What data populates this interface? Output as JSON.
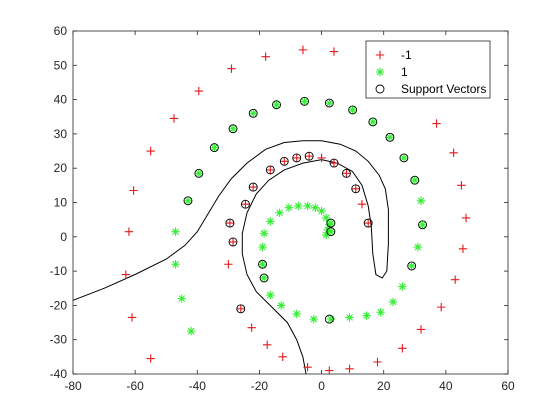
{
  "chart_data": {
    "type": "scatter",
    "title": "",
    "xlabel": "",
    "ylabel": "",
    "xlim": [
      -80,
      60
    ],
    "ylim": [
      -40,
      60
    ],
    "xticks": [
      -80,
      -60,
      -40,
      -20,
      0,
      20,
      40,
      60
    ],
    "yticks": [
      -40,
      -30,
      -20,
      -10,
      0,
      10,
      20,
      30,
      40,
      50,
      60
    ],
    "grid": false,
    "legend_position": "top-right",
    "series": [
      {
        "name": "-1",
        "marker": "plus",
        "color": "#e41a1c",
        "points": [
          [
            -62,
            1.5
          ],
          [
            -63,
            -11
          ],
          [
            -61,
            -23.5
          ],
          [
            -55,
            -35.5
          ],
          [
            -60.5,
            13.5
          ],
          [
            -55,
            25
          ],
          [
            -47.5,
            34.5
          ],
          [
            -39.5,
            42.5
          ],
          [
            -29,
            49
          ],
          [
            -18,
            52.5
          ],
          [
            -6,
            54.5
          ],
          [
            4,
            54
          ],
          [
            -30,
            -8
          ],
          [
            -29.5,
            4
          ],
          [
            -24.5,
            9.5
          ],
          [
            -22,
            14.5
          ],
          [
            -16.5,
            19.5
          ],
          [
            -12,
            22
          ],
          [
            -8,
            23
          ],
          [
            -4,
            23.5
          ],
          [
            0,
            23
          ],
          [
            4,
            21.5
          ],
          [
            8,
            18.5
          ],
          [
            11,
            14
          ],
          [
            13,
            9.5
          ],
          [
            15,
            4
          ],
          [
            -28.5,
            -1.5
          ],
          [
            -26,
            -21
          ],
          [
            -22.5,
            -26.5
          ],
          [
            -17.5,
            -31.5
          ],
          [
            -12.5,
            -35
          ],
          [
            -4.5,
            -38
          ],
          [
            2.5,
            -39
          ],
          [
            9,
            -38.5
          ],
          [
            18,
            -36.5
          ],
          [
            26,
            -32.5
          ],
          [
            32,
            -27
          ],
          [
            38.5,
            -20.5
          ],
          [
            43,
            -12.5
          ],
          [
            45.5,
            -3.5
          ],
          [
            46.5,
            5.5
          ],
          [
            45,
            15
          ],
          [
            42.5,
            24.5
          ],
          [
            37,
            33
          ]
        ]
      },
      {
        "name": "1",
        "marker": "asterisk",
        "color": "#33ee33",
        "points": [
          [
            -47,
            1.5
          ],
          [
            -47,
            -8
          ],
          [
            -45,
            -18
          ],
          [
            -42,
            -27.5
          ],
          [
            -43,
            10.5
          ],
          [
            -39.5,
            18.5
          ],
          [
            -34.5,
            26
          ],
          [
            -28.5,
            31.5
          ],
          [
            -22,
            36
          ],
          [
            -14.5,
            38.5
          ],
          [
            -5.5,
            39.5
          ],
          [
            2.5,
            39
          ],
          [
            10,
            37
          ],
          [
            16.5,
            33.5
          ],
          [
            22,
            29
          ],
          [
            26.5,
            23
          ],
          [
            30,
            16.5
          ],
          [
            32,
            10.5
          ],
          [
            32.5,
            3.5
          ],
          [
            31,
            -3
          ],
          [
            29,
            -8.5
          ],
          [
            26,
            -14.5
          ],
          [
            23,
            -19
          ],
          [
            19,
            -22
          ],
          [
            14.5,
            -23
          ],
          [
            9,
            -23.5
          ],
          [
            3,
            -24
          ],
          [
            -2.5,
            -24
          ],
          [
            -8,
            -22.5
          ],
          [
            -13,
            -20
          ],
          [
            -16.5,
            -17
          ],
          [
            -18.5,
            -12
          ],
          [
            -19,
            -8
          ],
          [
            -19,
            -3
          ],
          [
            -18.5,
            1
          ],
          [
            -16.5,
            4.5
          ],
          [
            -13.5,
            7
          ],
          [
            -10.5,
            8.5
          ],
          [
            -7.5,
            9
          ],
          [
            -4.5,
            9
          ],
          [
            -2,
            8.5
          ],
          [
            0,
            7.5
          ],
          [
            1.5,
            5.5
          ],
          [
            2.5,
            3.5
          ],
          [
            3,
            1.5
          ],
          [
            3,
            4
          ],
          [
            2,
            2
          ],
          [
            1.5,
            0.5
          ]
        ]
      }
    ],
    "support_vectors": {
      "name": "Support Vectors",
      "marker": "circle",
      "color": "#000000",
      "points": [
        [
          -29.5,
          4
        ],
        [
          -28.5,
          -1.5
        ],
        [
          -26,
          -21
        ],
        [
          -24.5,
          9.5
        ],
        [
          -22,
          14.5
        ],
        [
          -16.5,
          19.5
        ],
        [
          -12,
          22
        ],
        [
          -8,
          23
        ],
        [
          -4,
          23.5
        ],
        [
          4,
          21.5
        ],
        [
          8,
          18.5
        ],
        [
          11,
          14
        ],
        [
          15,
          4
        ],
        [
          -43,
          10.5
        ],
        [
          -39.5,
          18.5
        ],
        [
          -34.5,
          26
        ],
        [
          -28.5,
          31.5
        ],
        [
          -22,
          36
        ],
        [
          -14.5,
          38.5
        ],
        [
          -5.5,
          39.5
        ],
        [
          2.5,
          39
        ],
        [
          10,
          37
        ],
        [
          16.5,
          33.5
        ],
        [
          22,
          29
        ],
        [
          26.5,
          23
        ],
        [
          30,
          16.5
        ],
        [
          32.5,
          3.5
        ],
        [
          29,
          -8.5
        ],
        [
          -19,
          -8
        ],
        [
          -18.5,
          -12
        ],
        [
          2.5,
          -24
        ],
        [
          3,
          4
        ],
        [
          3,
          1.5
        ]
      ]
    },
    "decision_boundary": {
      "color": "#000000",
      "points": [
        [
          -80,
          -18.5
        ],
        [
          -70,
          -15
        ],
        [
          -60,
          -11
        ],
        [
          -50,
          -6.5
        ],
        [
          -44,
          -2.5
        ],
        [
          -40,
          1.5
        ],
        [
          -37,
          6
        ],
        [
          -33,
          12
        ],
        [
          -29,
          17
        ],
        [
          -24,
          21.5
        ],
        [
          -18,
          25.5
        ],
        [
          -12,
          27.5
        ],
        [
          -6,
          28
        ],
        [
          0,
          28
        ],
        [
          6,
          27
        ],
        [
          11,
          25
        ],
        [
          15,
          22
        ],
        [
          18.5,
          18
        ],
        [
          20.5,
          14
        ],
        [
          21.5,
          8
        ],
        [
          21.5,
          -2
        ],
        [
          21,
          -10
        ],
        [
          19.5,
          -12
        ],
        [
          17.5,
          -11
        ],
        [
          16.5,
          -5
        ],
        [
          16,
          3
        ],
        [
          15,
          9
        ],
        [
          13,
          15
        ],
        [
          10,
          19
        ],
        [
          5,
          21.5
        ],
        [
          0,
          22.5
        ],
        [
          -6,
          21.5
        ],
        [
          -12,
          19.5
        ],
        [
          -17,
          16.5
        ],
        [
          -21,
          12.5
        ],
        [
          -24,
          7
        ],
        [
          -25.5,
          1
        ],
        [
          -25.5,
          -5
        ],
        [
          -24,
          -11
        ],
        [
          -21,
          -16
        ],
        [
          -16,
          -20.5
        ],
        [
          -11,
          -25
        ],
        [
          -8,
          -30
        ],
        [
          -6,
          -35
        ],
        [
          -5,
          -40
        ]
      ]
    }
  }
}
